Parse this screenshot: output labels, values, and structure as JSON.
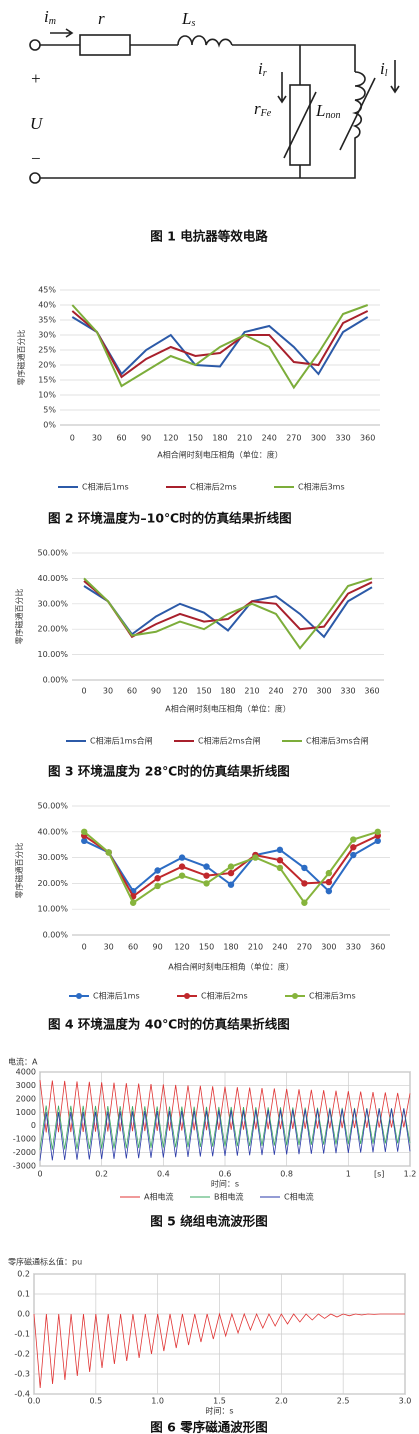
{
  "figure1": {
    "labels": [
      {
        "base": "i",
        "sub": "m"
      },
      {
        "base": "r",
        "sub": ""
      },
      {
        "base": "L",
        "sub": "s"
      },
      {
        "base": "i",
        "sub": "r"
      },
      {
        "base": "i",
        "sub": "l"
      },
      {
        "base": "r",
        "sub": "Fe"
      },
      {
        "base": "L",
        "sub": "non"
      },
      {
        "base": "U",
        "sub": ""
      },
      {
        "base": "+",
        "sub": ""
      },
      {
        "base": "−",
        "sub": ""
      }
    ],
    "caption": "图 1  电抗器等效电路"
  },
  "chart_data": [
    {
      "type": "line",
      "caption": "图 2  环境温度为–10℃时的仿真结果折线图",
      "ylabel": "零序磁通百分比",
      "xlabel": "A相合闸时刻电压相角（单位：度）",
      "legend": "bottom",
      "grid": true,
      "markers": false,
      "categories": [
        "0",
        "30",
        "60",
        "90",
        "120",
        "150",
        "180",
        "210",
        "240",
        "270",
        "300",
        "330",
        "360"
      ],
      "ylim": [
        0,
        45
      ],
      "yticks": [
        {
          "value": 0,
          "label": "0%"
        },
        {
          "value": 5,
          "label": "5%"
        },
        {
          "value": 10,
          "label": "10%"
        },
        {
          "value": 15,
          "label": "15%"
        },
        {
          "value": 20,
          "label": "20%"
        },
        {
          "value": 25,
          "label": "25%"
        },
        {
          "value": 30,
          "label": "30%"
        },
        {
          "value": 35,
          "label": "35%"
        },
        {
          "value": 40,
          "label": "40%"
        },
        {
          "value": 45,
          "label": "45%"
        }
      ],
      "series": [
        {
          "name": "C相滞后1ms",
          "color": "#2c5aa8",
          "values": [
            36,
            31,
            17,
            25,
            30,
            20,
            19.5,
            31,
            33,
            26,
            17,
            31,
            36
          ]
        },
        {
          "name": "C相滞后2ms",
          "color": "#a8202c",
          "values": [
            38,
            31,
            16,
            22,
            26,
            23,
            24,
            30,
            30,
            21,
            20,
            34,
            38
          ]
        },
        {
          "name": "C相滞后3ms",
          "color": "#7cad3a",
          "values": [
            40,
            31,
            13,
            18,
            23,
            20,
            26,
            30,
            26,
            12.5,
            24,
            37,
            40
          ]
        }
      ]
    },
    {
      "type": "line",
      "caption": "图 3  环境温度为 28℃时的仿真结果折线图",
      "ylabel": "零序磁通百分比",
      "xlabel": "A相合闸时刻电压相角（单位：度）",
      "legend": "bottom",
      "grid": true,
      "markers": false,
      "categories": [
        "0",
        "30",
        "60",
        "90",
        "120",
        "150",
        "180",
        "210",
        "240",
        "270",
        "300",
        "330",
        "360"
      ],
      "ylim": [
        0,
        50
      ],
      "yticks": [
        {
          "value": 0,
          "label": "0.00%"
        },
        {
          "value": 10,
          "label": "10.00%"
        },
        {
          "value": 20,
          "label": "20.00%"
        },
        {
          "value": 30,
          "label": "30.00%"
        },
        {
          "value": 40,
          "label": "40.00%"
        },
        {
          "value": 50,
          "label": "50.00%"
        }
      ],
      "series": [
        {
          "name": "C相滞后1ms合闸",
          "color": "#2c5aa8",
          "values": [
            37,
            31,
            18,
            25,
            30,
            26.5,
            19.5,
            31,
            33,
            26,
            17,
            31,
            36.5
          ]
        },
        {
          "name": "C相滞后2ms合闸",
          "color": "#a8202c",
          "values": [
            39,
            31,
            17,
            22,
            26,
            23,
            24,
            31,
            30,
            20,
            21,
            34,
            38.5
          ]
        },
        {
          "name": "C相滞后3ms合闸",
          "color": "#7cad3a",
          "values": [
            40,
            31,
            17.5,
            19,
            23,
            20,
            26,
            30,
            26,
            12.5,
            24,
            37,
            40
          ]
        }
      ]
    },
    {
      "type": "line",
      "caption": "图 4  环境温度为 40℃时的仿真结果折线图",
      "ylabel": "零序磁通百分比",
      "xlabel": "A相合闸时刻电压相角（单位：度）",
      "legend": "bottom",
      "grid": true,
      "markers": true,
      "categories": [
        "0",
        "30",
        "60",
        "90",
        "120",
        "150",
        "180",
        "210",
        "240",
        "270",
        "300",
        "330",
        "360"
      ],
      "ylim": [
        0,
        50
      ],
      "yticks": [
        {
          "value": 0,
          "label": "0.00%"
        },
        {
          "value": 10,
          "label": "10.00%"
        },
        {
          "value": 20,
          "label": "20.00%"
        },
        {
          "value": 30,
          "label": "30.00%"
        },
        {
          "value": 40,
          "label": "40.00%"
        },
        {
          "value": 50,
          "label": "50.00%"
        }
      ],
      "series": [
        {
          "name": "C相滞后1ms",
          "color": "#2c6cc4",
          "values": [
            36.5,
            32,
            17,
            25,
            30,
            26.5,
            19.5,
            31,
            33,
            26,
            17,
            31,
            36.5
          ]
        },
        {
          "name": "C相滞后2ms",
          "color": "#c0282c",
          "values": [
            38.5,
            32,
            15,
            22,
            26.5,
            23,
            24,
            31,
            29,
            20,
            20.5,
            34,
            38.5
          ]
        },
        {
          "name": "C相滞后3ms",
          "color": "#86b43c",
          "values": [
            40,
            32,
            12.5,
            19,
            23,
            20,
            26.5,
            30,
            26,
            12.5,
            24,
            37,
            40
          ]
        }
      ]
    },
    {
      "type": "line",
      "caption": "图 5  绕组电流波形图",
      "title": "电流：A",
      "xlabel": "时间：s",
      "x_unit": "[s]",
      "legend": "bottom",
      "grid": true,
      "frame": true,
      "markers": false,
      "xlim": [
        0,
        1.2
      ],
      "xticks": [
        0,
        0.2,
        0.4,
        0.6,
        0.8,
        1.0,
        1.2
      ],
      "ylim": [
        -3000,
        4000
      ],
      "yticks": [
        -3000,
        -2000,
        -1000,
        0,
        1000,
        2000,
        3000,
        4000
      ],
      "x": [
        0,
        0.02,
        0.04,
        0.06,
        0.08,
        0.1,
        0.12,
        0.14,
        0.16,
        0.18,
        0.2,
        0.22,
        0.24,
        0.26,
        0.28,
        0.3,
        0.32,
        0.34,
        0.36,
        0.38,
        0.4,
        0.42,
        0.44,
        0.46,
        0.48,
        0.5,
        0.52,
        0.54,
        0.56,
        0.58,
        0.6,
        0.62,
        0.64,
        0.66,
        0.68,
        0.7,
        0.72,
        0.74,
        0.76,
        0.78,
        0.8,
        0.82,
        0.84,
        0.86,
        0.88,
        0.9,
        0.92,
        0.94,
        0.96,
        0.98,
        1.0,
        1.02,
        1.04,
        1.06,
        1.08,
        1.1,
        1.12,
        1.14,
        1.16,
        1.18,
        1.2
      ],
      "series": [
        {
          "name": "A相电流",
          "color": "#e03434",
          "values": [
            3400,
            -500,
            3367,
            -487,
            3334,
            -474,
            3301,
            -461,
            3268,
            -448,
            3235,
            -435,
            3202,
            -422,
            3169,
            -409,
            3136,
            -396,
            3103,
            -383,
            3070,
            -370,
            3037,
            -357,
            3004,
            -344,
            2971,
            -331,
            2938,
            -318,
            2905,
            -305,
            2872,
            -292,
            2839,
            -279,
            2806,
            -266,
            2773,
            -253,
            2740,
            -240,
            2707,
            -227,
            2674,
            -214,
            2641,
            -201,
            2608,
            -188,
            2575,
            -175,
            2542,
            -162,
            2509,
            -149,
            2476,
            -136,
            2443,
            -123,
            2410
          ]
        },
        {
          "name": "B相电流",
          "color": "#3aa860",
          "values": [
            -1800,
            1500,
            -1783,
            1493,
            -1766,
            1486,
            -1749,
            1479,
            -1732,
            1472,
            -1715,
            1465,
            -1698,
            1458,
            -1681,
            1451,
            -1664,
            1444,
            -1647,
            1437,
            -1630,
            1430,
            -1613,
            1423,
            -1596,
            1416,
            -1579,
            1409,
            -1562,
            1402,
            -1545,
            1395,
            -1528,
            1388,
            -1511,
            1381,
            -1494,
            1374,
            -1477,
            1367,
            -1460,
            1360,
            -1443,
            1353,
            -1426,
            1346,
            -1409,
            1339,
            -1392,
            1332,
            -1375,
            1325,
            -1358,
            1318,
            -1341,
            1311,
            -1324,
            1304,
            -1307,
            1297,
            -1290
          ]
        },
        {
          "name": "C相电流",
          "color": "#2a3aa8",
          "values": [
            -2600,
            1000,
            -2577,
            1010,
            -2554,
            1020,
            -2531,
            1030,
            -2508,
            1040,
            -2485,
            1050,
            -2462,
            1060,
            -2439,
            1070,
            -2416,
            1080,
            -2393,
            1090,
            -2370,
            1100,
            -2347,
            1110,
            -2324,
            1120,
            -2301,
            1130,
            -2278,
            1140,
            -2255,
            1150,
            -2232,
            1160,
            -2209,
            1170,
            -2186,
            1180,
            -2163,
            1190,
            -2140,
            1200,
            -2117,
            1210,
            -2094,
            1220,
            -2071,
            1230,
            -2048,
            1240,
            -2025,
            1250,
            -2002,
            1260,
            -1979,
            1270,
            -1956,
            1280,
            -1933,
            1290,
            -1910
          ]
        }
      ]
    },
    {
      "type": "line",
      "caption": "图 6  零序磁通波形图",
      "title": "零序磁通标幺值：pu",
      "xlabel": "时间：s",
      "grid": true,
      "frame": true,
      "markers": false,
      "xlim": [
        0,
        3.0
      ],
      "xticks": [
        {
          "value": 0,
          "label": "0.0"
        },
        0.5,
        {
          "value": 1,
          "label": "1.0"
        },
        1.5,
        {
          "value": 2,
          "label": "2.0"
        },
        2.5,
        {
          "value": 3,
          "label": "3.0"
        }
      ],
      "ylim": [
        -0.4,
        0.2
      ],
      "yticks": [
        -0.4,
        -0.3,
        -0.2,
        -0.1,
        {
          "value": 0,
          "label": "0.0"
        },
        0.1,
        0.2
      ],
      "x": [
        0,
        0.05,
        0.1,
        0.15,
        0.2,
        0.25,
        0.3,
        0.35,
        0.4,
        0.45,
        0.5,
        0.55,
        0.6,
        0.65,
        0.7,
        0.75,
        0.8,
        0.85,
        0.9,
        0.95,
        1.0,
        1.05,
        1.1,
        1.15,
        1.2,
        1.25,
        1.3,
        1.35,
        1.4,
        1.45,
        1.5,
        1.55,
        1.6,
        1.65,
        1.7,
        1.75,
        1.8,
        1.85,
        1.9,
        1.95,
        2.0,
        2.05,
        2.1,
        2.15,
        2.2,
        2.25,
        2.3,
        2.35,
        2.4,
        2.45,
        2.5,
        2.55,
        2.6,
        2.65,
        2.7,
        2.75,
        2.8,
        2.85,
        2.9,
        2.95,
        3.0
      ],
      "series": [
        {
          "name": "零序磁通",
          "color": "#e03434",
          "values": [
            0,
            -0.37,
            0,
            -0.35,
            0,
            -0.33,
            0,
            -0.31,
            0,
            -0.29,
            0,
            -0.27,
            0,
            -0.25,
            0,
            -0.235,
            0,
            -0.22,
            0,
            -0.2,
            0,
            -0.185,
            0,
            -0.17,
            0,
            -0.155,
            0,
            -0.14,
            0,
            -0.125,
            0,
            -0.11,
            0,
            -0.095,
            0,
            -0.08,
            0,
            -0.07,
            0,
            -0.06,
            0,
            -0.05,
            0,
            -0.04,
            0,
            -0.03,
            0,
            -0.022,
            0,
            -0.015,
            0,
            -0.009,
            0,
            -0.005,
            0,
            -0.002,
            0,
            0,
            0,
            0,
            0
          ]
        }
      ]
    }
  ]
}
